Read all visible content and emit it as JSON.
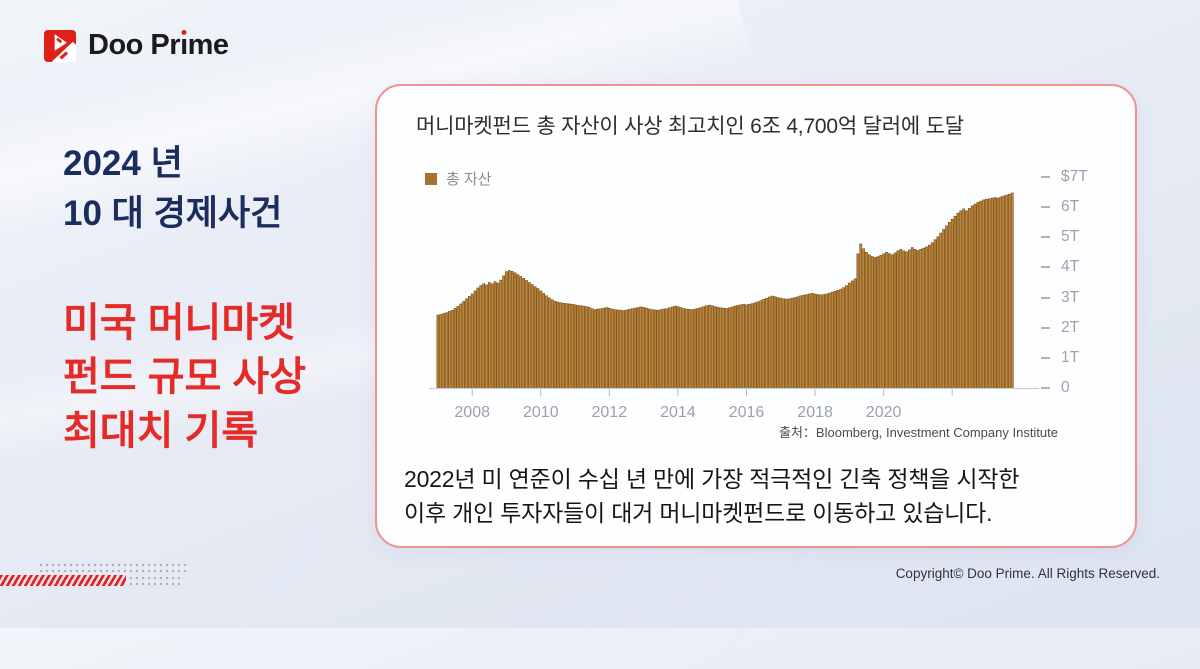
{
  "brand": {
    "text": "Doo Prime",
    "pre": "Doo Pr",
    "i_stem": "ı",
    "post": "me",
    "accent_color": "#e0211a"
  },
  "left_panel": {
    "subtitle_lines": [
      "2024 년",
      "10 대 경제사건"
    ],
    "subtitle_color": "#1b2d5f",
    "title_lines": [
      "미국 머니마켓",
      "펀드 규모 사상",
      "최대치 기록"
    ],
    "title_color": "#e52b28"
  },
  "card": {
    "title": "머니마켓펀드 총 자산이 사상 최고치인 6조 4,700억 달러에 도달",
    "legend": {
      "label": "총 자산",
      "swatch_color": "#a8722a"
    },
    "source": "출처：Bloomberg, Investment Company Institute",
    "caption_lines": [
      "2022년 미 연준이 수십 년 만에 가장 적극적인 긴축 정책을 시작한",
      "이후 개인 투자자들이 대거 머니마켓펀드로 이동하고 있습니다."
    ],
    "border_color": "#f19090"
  },
  "footer": {
    "copyright": "Copyright© Doo Prime. All Rights Reserved."
  },
  "chart_data": {
    "type": "bar",
    "title": "머니마켓펀드 총 자산이 사상 최고치인 6조 4,700억 달러에 도달",
    "x_tick_labels": [
      "2008",
      "2010",
      "2012",
      "2014",
      "2016",
      "2018",
      "2020"
    ],
    "y_tick_labels": [
      "$7T",
      "6T",
      "5T",
      "4T",
      "3T",
      "2T",
      "1T",
      "0"
    ],
    "y_tick_dash": "–",
    "ylim": [
      0,
      7
    ],
    "grid": false,
    "legend_position": "top-left",
    "bar_color": "#c08432",
    "bar_edge_color": "#6d4513",
    "axis_color": "#cbd0d6",
    "tick_label_color": "#9da1a7",
    "source": "Bloomberg, Investment Company Institute",
    "series": [
      {
        "name": "총 자산",
        "unit": "trillion USD",
        "start": "2007-01",
        "frequency": "monthly",
        "values": [
          2.42,
          2.44,
          2.47,
          2.5,
          2.54,
          2.58,
          2.64,
          2.71,
          2.79,
          2.87,
          2.96,
          3.04,
          3.12,
          3.22,
          3.32,
          3.4,
          3.46,
          3.42,
          3.5,
          3.46,
          3.53,
          3.48,
          3.58,
          3.72,
          3.86,
          3.9,
          3.87,
          3.82,
          3.76,
          3.7,
          3.64,
          3.57,
          3.5,
          3.43,
          3.36,
          3.3,
          3.22,
          3.14,
          3.06,
          2.99,
          2.93,
          2.88,
          2.85,
          2.83,
          2.81,
          2.8,
          2.79,
          2.78,
          2.76,
          2.74,
          2.73,
          2.72,
          2.7,
          2.68,
          2.63,
          2.6,
          2.62,
          2.63,
          2.65,
          2.67,
          2.65,
          2.62,
          2.6,
          2.59,
          2.58,
          2.57,
          2.59,
          2.61,
          2.63,
          2.65,
          2.67,
          2.69,
          2.68,
          2.65,
          2.62,
          2.6,
          2.59,
          2.58,
          2.6,
          2.62,
          2.63,
          2.66,
          2.69,
          2.72,
          2.7,
          2.67,
          2.64,
          2.62,
          2.61,
          2.6,
          2.62,
          2.64,
          2.67,
          2.7,
          2.73,
          2.75,
          2.73,
          2.7,
          2.68,
          2.66,
          2.65,
          2.64,
          2.66,
          2.69,
          2.72,
          2.74,
          2.76,
          2.78,
          2.76,
          2.78,
          2.8,
          2.83,
          2.86,
          2.9,
          2.94,
          2.98,
          3.02,
          3.05,
          3.03,
          3.0,
          2.98,
          2.96,
          2.95,
          2.96,
          2.98,
          3.0,
          3.03,
          3.06,
          3.08,
          3.1,
          3.12,
          3.14,
          3.12,
          3.1,
          3.09,
          3.1,
          3.12,
          3.15,
          3.18,
          3.21,
          3.24,
          3.28,
          3.33,
          3.4,
          3.48,
          3.55,
          3.62,
          4.45,
          4.78,
          4.62,
          4.5,
          4.42,
          4.36,
          4.33,
          4.36,
          4.4,
          4.45,
          4.5,
          4.46,
          4.42,
          4.48,
          4.55,
          4.6,
          4.55,
          4.52,
          4.58,
          4.66,
          4.6,
          4.56,
          4.6,
          4.64,
          4.68,
          4.74,
          4.82,
          4.92,
          5.02,
          5.14,
          5.26,
          5.38,
          5.5,
          5.6,
          5.7,
          5.8,
          5.88,
          5.94,
          5.88,
          5.96,
          6.04,
          6.1,
          6.16,
          6.2,
          6.24,
          6.26,
          6.28,
          6.3,
          6.32,
          6.3,
          6.34,
          6.37,
          6.4,
          6.43,
          6.47
        ]
      }
    ]
  }
}
